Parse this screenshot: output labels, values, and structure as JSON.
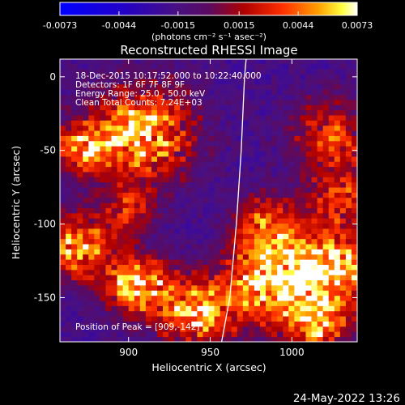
{
  "colorbar": {
    "ticks": [
      "-0.0073",
      "-0.0044",
      "-0.0015",
      "0.0015",
      "0.0044",
      "0.0073"
    ],
    "tick_values": [
      -0.0073,
      -0.0044,
      -0.0015,
      0.0015,
      0.0044,
      0.0073
    ],
    "range": [
      -0.0073,
      0.0073
    ],
    "units": "(photons cm⁻² s⁻¹ asec⁻²)"
  },
  "chart_data": {
    "type": "heatmap",
    "title": "Reconstructed RHESSI Image",
    "xlabel": "Heliocentric X (arcsec)",
    "ylabel": "Heliocentric Y (arcsec)",
    "xlim": [
      858,
      1040
    ],
    "ylim": [
      -180,
      12
    ],
    "x_ticks": [
      900,
      950,
      1000
    ],
    "y_ticks": [
      0,
      -50,
      -100,
      -150
    ],
    "colormap": "rhessi: blue → purple → red → orange → yellow → white",
    "grid": false,
    "annotations": [
      "18-Dec-2015 10:17:52.000 to 10:22:40.000",
      "Detectors: 1F 6F 7F 8F 9F",
      "Energy Range: 25.0 - 50.0 keV",
      "Clean     Total Counts: 7.24E+03"
    ],
    "peak_label": "Position of Peak = [909,-142]",
    "limb_points": [
      [
        957,
        -180
      ],
      [
        962,
        -150
      ],
      [
        966,
        -100
      ],
      [
        969,
        -50
      ],
      [
        971,
        0
      ],
      [
        972,
        12
      ]
    ],
    "blobs": [
      {
        "x": 908,
        "y": -38,
        "amp": 1.0,
        "r": 22
      },
      {
        "x": 872,
        "y": -48,
        "amp": 0.75,
        "r": 12
      },
      {
        "x": 868,
        "y": -115,
        "amp": 0.85,
        "r": 16
      },
      {
        "x": 900,
        "y": -90,
        "amp": 0.5,
        "r": 12
      },
      {
        "x": 905,
        "y": -142,
        "amp": 1.0,
        "r": 14
      },
      {
        "x": 940,
        "y": -160,
        "amp": 0.9,
        "r": 16
      },
      {
        "x": 985,
        "y": -140,
        "amp": 0.95,
        "r": 20
      },
      {
        "x": 985,
        "y": -100,
        "amp": 0.7,
        "r": 14
      },
      {
        "x": 1025,
        "y": -130,
        "amp": 1.0,
        "r": 20
      },
      {
        "x": 1025,
        "y": -40,
        "amp": 0.6,
        "r": 18
      },
      {
        "x": 1030,
        "y": -80,
        "amp": 0.55,
        "r": 14
      },
      {
        "x": 1015,
        "y": -170,
        "amp": 0.7,
        "r": 14
      }
    ]
  },
  "timestamp": "24-May-2022 13:26"
}
